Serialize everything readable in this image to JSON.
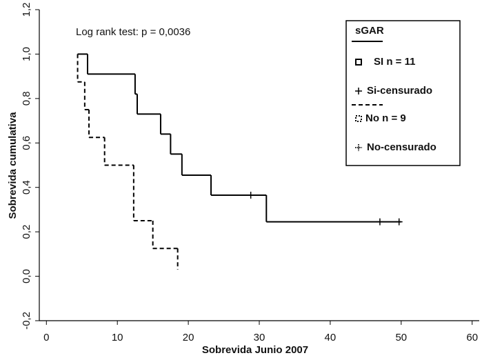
{
  "chart_data": {
    "type": "step",
    "annotation": "Log rank test: p = 0,0036",
    "x_label": "Sobrevida Junio 2007",
    "y_label": "Sobrevida cumulativa",
    "legend_title": "sGAR",
    "legend": "upper right",
    "xlim": [
      -1,
      61
    ],
    "xticks": [
      0,
      10,
      20,
      30,
      40,
      50,
      60
    ],
    "ylim": [
      -0.2,
      1.2
    ],
    "yticks": [
      {
        "value": -0.2,
        "label": "-0,2"
      },
      {
        "value": 0,
        "label": "0,0"
      },
      {
        "value": 0.2,
        "label": "0,2"
      },
      {
        "value": 0.4,
        "label": "0,4"
      },
      {
        "value": 0.6,
        "label": "0,6"
      },
      {
        "value": 0.8,
        "label": "0,8"
      },
      {
        "value": 1.0,
        "label": "1,0"
      },
      {
        "value": 1.2,
        "label": "1,2"
      }
    ],
    "series": [
      {
        "name": "SI  n = 11",
        "color": "#000000",
        "dashed": false,
        "marker": "step",
        "x": [
          4.4,
          5.8,
          12.5,
          12.8,
          16.1,
          17.5,
          19.1,
          23.2,
          31.0,
          50.0
        ],
        "values": [
          1.0,
          0.91,
          0.82,
          0.73,
          0.64,
          0.55,
          0.455,
          0.365,
          0.245,
          0.245
        ]
      },
      {
        "name": "Si-censurado",
        "color": "#000000",
        "marker": "plus",
        "x": [
          28.8,
          47.0,
          49.7
        ],
        "values": [
          0.365,
          0.245,
          0.245
        ]
      },
      {
        "name": "No n = 9",
        "color": "#000000",
        "dashed": true,
        "marker": "step",
        "x": [
          4.4,
          4.4,
          5.4,
          6.0,
          8.2,
          12.3,
          15.0,
          18.5
        ],
        "values": [
          1.0,
          0.875,
          0.75,
          0.625,
          0.5,
          0.25,
          0.125,
          0.03
        ]
      },
      {
        "name": "No-censurado",
        "color": "#000000",
        "marker": "plus",
        "x": [],
        "values": []
      }
    ]
  }
}
